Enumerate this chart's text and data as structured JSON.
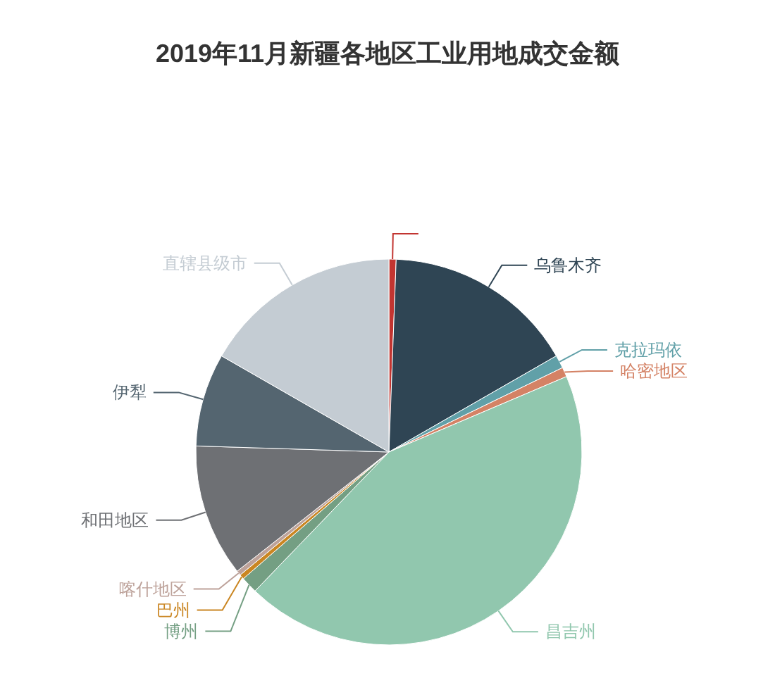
{
  "chart_data": {
    "type": "pie",
    "title": "2019年11月新疆各地区工业用地成交金额",
    "categories": [
      null,
      "乌鲁木齐",
      "克拉玛依",
      "哈密地区",
      "昌吉州",
      "博州",
      "巴州",
      "喀什地区",
      "和田地区",
      "伊犁",
      "直辖县级市"
    ],
    "values": [
      0.6,
      16.1,
      1.1,
      0.8,
      43.6,
      1.4,
      0.4,
      0.4,
      11.1,
      7.8,
      16.7
    ],
    "colors": [
      "#c23531",
      "#2f4554",
      "#61a0a8",
      "#d48265",
      "#91c7ae",
      "#749f83",
      "#ca8622",
      "#bda29a",
      "#6e7074",
      "#546570",
      "#c4ccd3"
    ]
  }
}
